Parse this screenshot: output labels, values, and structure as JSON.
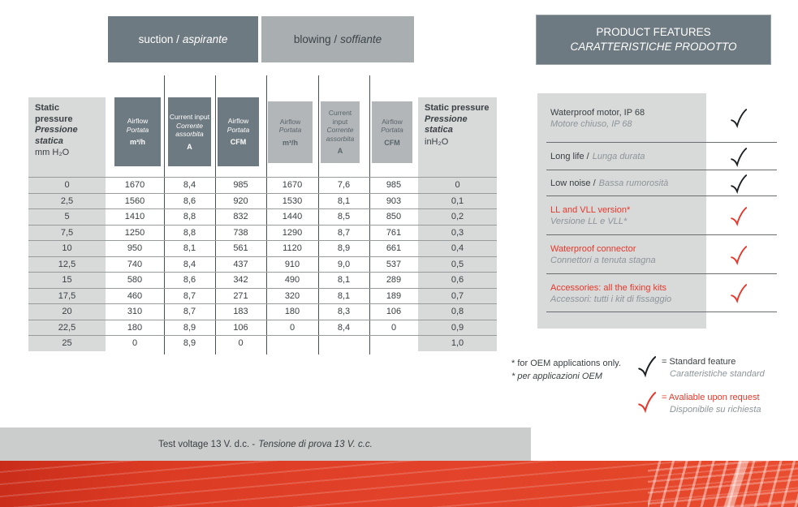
{
  "suction_tab": {
    "en": "suction /",
    "it": "aspirante"
  },
  "blowing_tab": {
    "en": "blowing /",
    "it": "soffiante"
  },
  "features": {
    "title_en": "PRODUCT FEATURES",
    "title_it": "CARATTERISTICHE PRODOTTO",
    "items": [
      {
        "en": "Waterproof motor, IP 68",
        "it": "Motore chiuso, IP 68",
        "layout": "stacked",
        "type": "standard"
      },
      {
        "en": "Long life /",
        "it": "Lunga durata",
        "layout": "inline",
        "type": "standard"
      },
      {
        "en": "Low noise /",
        "it": "Bassa rumorosità",
        "layout": "inline",
        "type": "standard"
      },
      {
        "en": "LL and VLL version*",
        "it": "Versione LL e VLL*",
        "layout": "stacked",
        "type": "request"
      },
      {
        "en": "Waterproof connector",
        "it": "Connettori a tenuta stagna",
        "layout": "stacked",
        "type": "request"
      },
      {
        "en": "Accessories: all the fixing kits",
        "it": "Accessori: tutti i kit di fissaggio",
        "layout": "stacked",
        "type": "request"
      }
    ]
  },
  "legend": {
    "oem_en": "* for OEM applications only.",
    "oem_it": "* per applicazioni OEM",
    "standard_en": "= Standard feature",
    "standard_it": "Caratteristiche standard",
    "request_en": "= Avaliable upon request",
    "request_it": "Disponibile su richiesta"
  },
  "test_voltage": {
    "en": "Test voltage 13 V. d.c. -",
    "it": "Tensione di prova 13 V. c.c."
  },
  "table": {
    "columns": [
      {
        "en": "Static pressure",
        "it": "Pressione statica",
        "unit": "mm H₂O"
      },
      {
        "en": "Airflow",
        "it": "Portata",
        "unit": "m³/h"
      },
      {
        "en": "Current input",
        "it": "Corrente assorbita",
        "unit": "A"
      },
      {
        "en": "Airflow",
        "it": "Portata",
        "unit": "CFM"
      },
      {
        "en": "Airflow",
        "it": "Portata",
        "unit": "m³/h"
      },
      {
        "en": "Current input",
        "it": "Corrente assorbita",
        "unit": "A"
      },
      {
        "en": "Airflow",
        "it": "Portata",
        "unit": "CFM"
      },
      {
        "en": "Static pressure",
        "it": "Pressione statica",
        "unit": "inH₂O"
      }
    ],
    "rows": [
      [
        "0",
        "1670",
        "8,4",
        "985",
        "1670",
        "7,6",
        "985",
        "0"
      ],
      [
        "2,5",
        "1560",
        "8,6",
        "920",
        "1530",
        "8,1",
        "903",
        "0,1"
      ],
      [
        "5",
        "1410",
        "8,8",
        "832",
        "1440",
        "8,5",
        "850",
        "0,2"
      ],
      [
        "7,5",
        "1250",
        "8,8",
        "738",
        "1290",
        "8,7",
        "761",
        "0,3"
      ],
      [
        "10",
        "950",
        "8,1",
        "561",
        "1120",
        "8,9",
        "661",
        "0,4"
      ],
      [
        "12,5",
        "740",
        "8,4",
        "437",
        "910",
        "9,0",
        "537",
        "0,5"
      ],
      [
        "15",
        "580",
        "8,6",
        "342",
        "490",
        "8,1",
        "289",
        "0,6"
      ],
      [
        "17,5",
        "460",
        "8,7",
        "271",
        "320",
        "8,1",
        "189",
        "0,7"
      ],
      [
        "20",
        "310",
        "8,7",
        "183",
        "180",
        "8,3",
        "106",
        "0,8"
      ],
      [
        "22,5",
        "180",
        "8,9",
        "106",
        "0",
        "8,4",
        "0",
        "0,9"
      ],
      [
        "25",
        "0",
        "8,9",
        "0",
        "",
        "",
        "",
        "1,0"
      ]
    ]
  },
  "icons": {
    "standard_check": "checkmark-icon-black",
    "request_check": "checkmark-icon-red"
  },
  "colors": {
    "accent_red": "#e8372a",
    "dark_slate": "#6e7a81",
    "light_slate": "#a9aeb1",
    "blowing_header": "#b2b6b8",
    "panel_gray": "#d8d9d9",
    "band_red": "#e2422a"
  }
}
